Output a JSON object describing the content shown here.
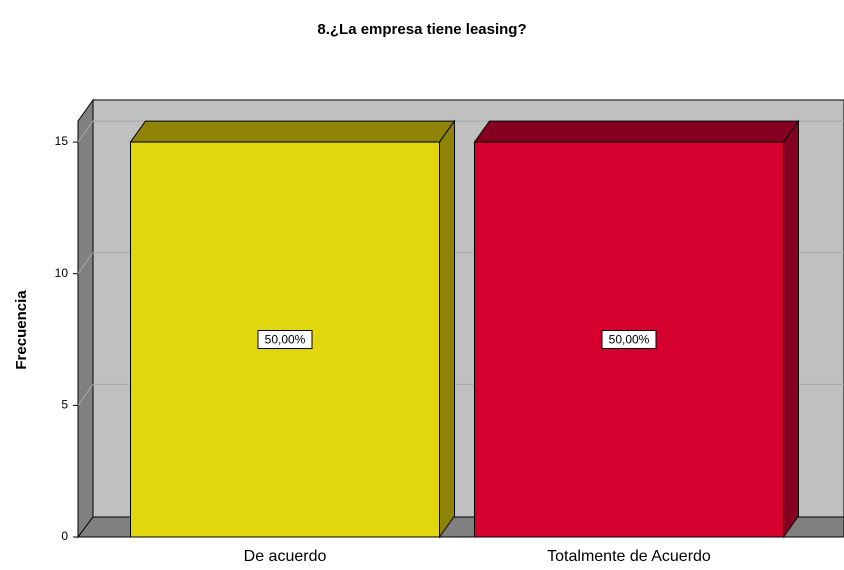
{
  "chart_data": {
    "type": "bar3d",
    "title": "8.¿La empresa tiene leasing?",
    "y_label": "Frecuencia",
    "categories": [
      "De acuerdo",
      "Totalmente de Acuerdo"
    ],
    "values": [
      15,
      15
    ],
    "data_labels": [
      "50,00%",
      "50,00%"
    ],
    "colors": [
      "#e2d60e",
      "#d6002f"
    ],
    "side_colors": [
      "#8f8308",
      "#850020"
    ],
    "ylim": [
      0,
      15.8
    ],
    "yticks": [
      0,
      5,
      10,
      15
    ],
    "grid": true
  }
}
